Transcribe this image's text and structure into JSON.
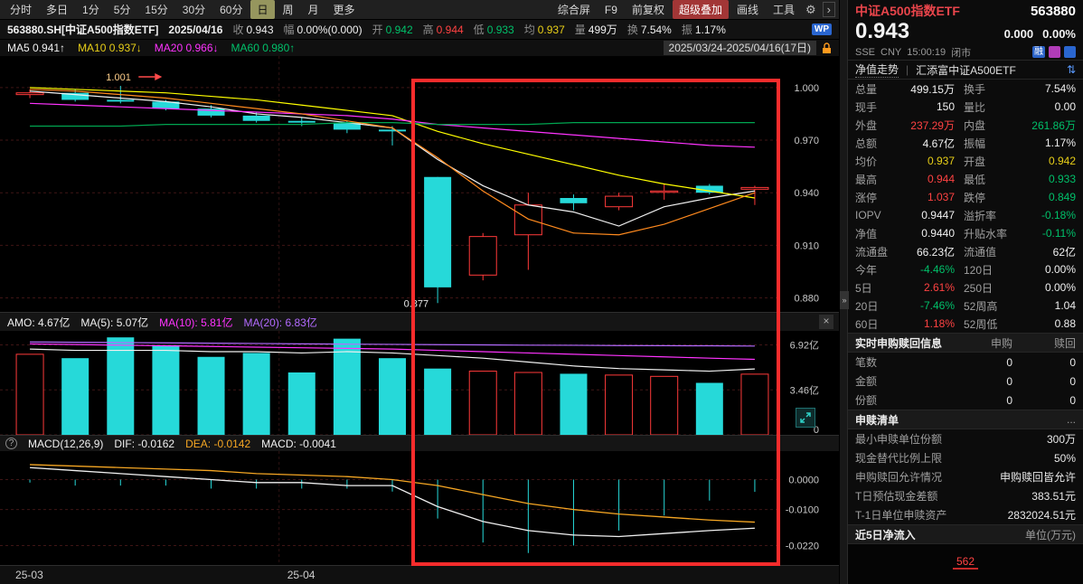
{
  "colors": {
    "white": "#f0f0f0",
    "gray": "#a0a0a0",
    "red": "#ff4242",
    "green": "#00c06a",
    "cyan": "#26d9d9",
    "yellow": "#e8cf18",
    "orange": "#f5a623",
    "magenta": "#ff33ff",
    "purple": "#b36bff",
    "blue": "#2a66d0",
    "k_up": "#ff3a3a",
    "k_down": "#26d9d9"
  },
  "icons": {
    "gear": "⚙",
    "chevron_right": "›",
    "close": "×",
    "help": "?",
    "collapse_right": "»",
    "swap_vertical": "⇅"
  },
  "topbar": {
    "tabs": [
      "分时",
      "多日",
      "1分",
      "5分",
      "15分",
      "30分",
      "60分",
      "日",
      "周",
      "月",
      "更多"
    ],
    "active_tab": "日",
    "right_buttons": [
      {
        "label": "综合屏"
      },
      {
        "label": "F9"
      },
      {
        "label": "前复权"
      },
      {
        "label": "超级叠加",
        "cls": "accent"
      },
      {
        "label": "画线"
      },
      {
        "label": "工具"
      }
    ]
  },
  "infobar": {
    "symbol": "563880.SH[中证A500指数ETF]",
    "date": "2025/04/16",
    "fields": [
      {
        "label": "收",
        "value": "0.943",
        "color": "white"
      },
      {
        "label": "幅",
        "value": "0.00%(0.000)",
        "color": "white"
      },
      {
        "label": "开",
        "value": "0.942",
        "color": "green"
      },
      {
        "label": "高",
        "value": "0.944",
        "color": "red"
      },
      {
        "label": "低",
        "value": "0.933",
        "color": "green"
      },
      {
        "label": "均",
        "value": "0.937",
        "color": "yellow"
      },
      {
        "label": "量",
        "value": "499万",
        "color": "white"
      },
      {
        "label": "换",
        "value": "7.54%",
        "color": "white"
      },
      {
        "label": "振",
        "value": "1.17%",
        "color": "white"
      }
    ],
    "wp_badge": "WP"
  },
  "ma_bar": {
    "items": [
      {
        "label": "MA5",
        "value": "0.941↑",
        "color": "white"
      },
      {
        "label": "MA10",
        "value": "0.937↓",
        "color": "yellow"
      },
      {
        "label": "MA20",
        "value": "0.966↓",
        "color": "magenta"
      },
      {
        "label": "MA60",
        "value": "0.980↑",
        "color": "green"
      }
    ],
    "date_range": "2025/03/24-2025/04/16(17日)"
  },
  "vol_header": {
    "fields": [
      {
        "label": "AMO:",
        "value": "4.67亿",
        "color": "white"
      },
      {
        "label": "MA(5):",
        "value": "5.07亿",
        "color": "white"
      },
      {
        "label": "MA(10):",
        "value": "5.81亿",
        "color": "magenta"
      },
      {
        "label": "MA(20):",
        "value": "6.83亿",
        "color": "purple"
      }
    ]
  },
  "macd_header": {
    "fields": [
      {
        "label": "MACD(12,26,9)",
        "value": "",
        "color": "white"
      },
      {
        "label": "DIF:",
        "value": "-0.0162",
        "color": "white"
      },
      {
        "label": "DEA:",
        "value": "-0.0142",
        "color": "orange"
      },
      {
        "label": "MACD:",
        "value": "-0.0041",
        "color": "white"
      }
    ]
  },
  "sidebar": {
    "name": "中证A500指数ETF",
    "code": "563880",
    "price": "0.943",
    "change": "0.000",
    "change_pct": "0.00%",
    "exchange": "SSE",
    "currency": "CNY",
    "time": "15:00:19",
    "market_status": "闭市",
    "badge_rong": "融",
    "nav_link": "净值走势",
    "related_fund": "汇添富中证A500ETF",
    "quote_rows": [
      {
        "l1": "总量",
        "v1": "499.15万",
        "c1": "white",
        "l2": "换手",
        "v2": "7.54%",
        "c2": "white"
      },
      {
        "l1": "现手",
        "v1": "150",
        "c1": "white",
        "l2": "量比",
        "v2": "0.00",
        "c2": "white"
      },
      {
        "l1": "外盘",
        "v1": "237.29万",
        "c1": "red",
        "l2": "内盘",
        "v2": "261.86万",
        "c2": "green"
      },
      {
        "l1": "总额",
        "v1": "4.67亿",
        "c1": "white",
        "l2": "振幅",
        "v2": "1.17%",
        "c2": "white"
      },
      {
        "l1": "均价",
        "v1": "0.937",
        "c1": "yellow",
        "l2": "开盘",
        "v2": "0.942",
        "c2": "yellow"
      },
      {
        "l1": "最高",
        "v1": "0.944",
        "c1": "red",
        "l2": "最低",
        "v2": "0.933",
        "c2": "green"
      },
      {
        "l1": "涨停",
        "v1": "1.037",
        "c1": "red",
        "l2": "跌停",
        "v2": "0.849",
        "c2": "green"
      },
      {
        "l1": "IOPV",
        "v1": "0.9447",
        "c1": "white",
        "l2": "溢折率",
        "v2": "-0.18%",
        "c2": "green"
      },
      {
        "l1": "净值",
        "v1": "0.9440",
        "c1": "white",
        "l2": "升贴水率",
        "v2": "-0.11%",
        "c2": "green"
      },
      {
        "l1": "流通盘",
        "v1": "66.23亿",
        "c1": "white",
        "l2": "流通值",
        "v2": "62亿",
        "c2": "white"
      },
      {
        "l1": "今年",
        "v1": "-4.46%",
        "c1": "green",
        "l2": "120日",
        "v2": "0.00%",
        "c2": "white"
      },
      {
        "l1": "5日",
        "v1": "2.61%",
        "c1": "red",
        "l2": "250日",
        "v2": "0.00%",
        "c2": "white"
      },
      {
        "l1": "20日",
        "v1": "-7.46%",
        "c1": "green",
        "l2": "52周高",
        "v2": "1.04",
        "c2": "white"
      },
      {
        "l1": "60日",
        "v1": "1.18%",
        "c1": "red",
        "l2": "52周低",
        "v2": "0.88",
        "c2": "white"
      }
    ],
    "subscription": {
      "title": "实时申购赎回信息",
      "col1": "申购",
      "col2": "赎回",
      "rows": [
        {
          "label": "笔数",
          "buy": "0",
          "sell": "0"
        },
        {
          "label": "金额",
          "buy": "0",
          "sell": "0"
        },
        {
          "label": "份额",
          "buy": "0",
          "sell": "0"
        }
      ]
    },
    "redemption": {
      "title": "申赎清单",
      "more": "...",
      "rows": [
        {
          "label": "最小申赎单位份额",
          "value": "300万"
        },
        {
          "label": "现金替代比例上限",
          "value": "50%"
        },
        {
          "label": "申购赎回允许情况",
          "value": "申购赎回皆允许"
        },
        {
          "label": "T日预估现金差额",
          "value": "383.51元"
        },
        {
          "label": "T-1日单位申赎资产",
          "value": "2832024.51元"
        }
      ]
    },
    "net_inflow": {
      "title": "近5日净流入",
      "unit": "单位(万元)",
      "value": "562"
    }
  },
  "chart_data": {
    "type": "candlestick",
    "title": "563880.SH 中证A500指数ETF 日K 2025/03/24-2025/04/16(17日)",
    "dates": [
      "03/24",
      "03/25",
      "03/26",
      "03/27",
      "03/28",
      "03/31",
      "04/01",
      "04/02",
      "04/03",
      "04/07",
      "04/08",
      "04/09",
      "04/10",
      "04/11",
      "04/14",
      "04/15",
      "04/16"
    ],
    "candles": [
      [
        0.996,
        0.999,
        0.994,
        0.997
      ],
      [
        0.997,
        0.999,
        0.992,
        0.993
      ],
      [
        0.993,
        1.001,
        0.991,
        0.992
      ],
      [
        0.992,
        0.993,
        0.987,
        0.988
      ],
      [
        0.988,
        0.99,
        0.983,
        0.984
      ],
      [
        0.984,
        0.986,
        0.98,
        0.981
      ],
      [
        0.981,
        0.983,
        0.978,
        0.98
      ],
      [
        0.98,
        0.981,
        0.974,
        0.976
      ],
      [
        0.976,
        0.978,
        0.967,
        0.975
      ],
      [
        0.949,
        0.949,
        0.877,
        0.886
      ],
      [
        0.893,
        0.917,
        0.89,
        0.915
      ],
      [
        0.916,
        0.94,
        0.896,
        0.933
      ],
      [
        0.937,
        0.939,
        0.93,
        0.934
      ],
      [
        0.932,
        0.94,
        0.93,
        0.938
      ],
      [
        0.941,
        0.945,
        0.936,
        0.941
      ],
      [
        0.944,
        0.945,
        0.939,
        0.94
      ],
      [
        0.942,
        0.944,
        0.933,
        0.943
      ]
    ],
    "ylim": [
      0.872,
      1.018
    ],
    "y_ticks": [
      {
        "v": 1.0,
        "label": "1.000"
      },
      {
        "v": 0.97,
        "label": "0.970"
      },
      {
        "v": 0.94,
        "label": "0.940"
      },
      {
        "v": 0.91,
        "label": "0.910"
      },
      {
        "v": 0.88,
        "label": "0.880"
      }
    ],
    "ma_series": [
      {
        "name": "MA5",
        "color": "#f0f0f0",
        "values": [
          0.998,
          0.996,
          0.994,
          0.992,
          0.989,
          0.985,
          0.983,
          0.98,
          0.977,
          0.959,
          0.944,
          0.933,
          0.929,
          0.921,
          0.932,
          0.937,
          0.941
        ]
      },
      {
        "name": "MA10",
        "color": "#ffff00",
        "values": [
          1.0,
          0.999,
          0.998,
          0.997,
          0.995,
          0.993,
          0.99,
          0.987,
          0.984,
          0.975,
          0.968,
          0.962,
          0.956,
          0.95,
          0.945,
          0.941,
          0.937
        ]
      },
      {
        "name": "MA20",
        "color": "#ff33ff",
        "values": [
          0.991,
          0.99,
          0.989,
          0.988,
          0.987,
          0.986,
          0.985,
          0.984,
          0.982,
          0.979,
          0.977,
          0.975,
          0.973,
          0.971,
          0.969,
          0.967,
          0.966
        ]
      },
      {
        "name": "MA60",
        "color": "#00a550",
        "values": [
          0.978,
          0.978,
          0.978,
          0.979,
          0.979,
          0.979,
          0.979,
          0.98,
          0.98,
          0.979,
          0.979,
          0.979,
          0.98,
          0.98,
          0.98,
          0.98,
          0.98
        ]
      },
      {
        "name": "MA-orange",
        "color": "#ff8a1e",
        "values": [
          0.999,
          0.998,
          0.996,
          0.994,
          0.991,
          0.988,
          0.985,
          0.981,
          0.977,
          0.96,
          0.941,
          0.925,
          0.917,
          0.916,
          0.922,
          0.931,
          0.94
        ]
      }
    ],
    "annotations": [
      {
        "text": "1.001",
        "index": 2,
        "price": 1.001,
        "placement": "above",
        "color": "#ffce8a",
        "arrow": true
      },
      {
        "text": "0.877",
        "index": 9,
        "price": 0.877,
        "placement": "left",
        "color": "#e8e8e8",
        "arrow": false
      }
    ],
    "x_labels": [
      {
        "index": 0,
        "text": "25-03"
      },
      {
        "index": 6,
        "text": "25-04"
      }
    ],
    "volume": {
      "unit": "亿",
      "values": [
        6.2,
        5.9,
        7.5,
        6.9,
        6.0,
        6.3,
        4.8,
        7.4,
        5.9,
        5.1,
        4.9,
        4.8,
        4.7,
        4.6,
        4.5,
        4.0,
        4.67
      ],
      "ylim": [
        0,
        8
      ],
      "y_ticks": [
        {
          "v": 6.92,
          "label": "6.92亿"
        },
        {
          "v": 3.46,
          "label": "3.46亿"
        },
        {
          "v": 0,
          "label": "0"
        }
      ],
      "ma_series": [
        {
          "name": "MA5",
          "color": "#f0f0f0",
          "values": [
            6.6,
            6.5,
            6.5,
            6.5,
            6.4,
            6.4,
            6.3,
            6.4,
            6.3,
            6.1,
            5.9,
            5.6,
            5.3,
            5.1,
            5.0,
            4.9,
            5.07
          ]
        },
        {
          "name": "MA10",
          "color": "#ff33ff",
          "values": [
            7.0,
            6.95,
            6.9,
            6.85,
            6.8,
            6.75,
            6.7,
            6.65,
            6.6,
            6.5,
            6.4,
            6.3,
            6.2,
            6.1,
            6.0,
            5.9,
            5.81
          ]
        },
        {
          "name": "MA20",
          "color": "#b36bff",
          "values": [
            7.15,
            7.12,
            7.1,
            7.08,
            7.05,
            7.03,
            7.0,
            6.98,
            6.96,
            6.94,
            6.92,
            6.9,
            6.89,
            6.87,
            6.86,
            6.85,
            6.83
          ]
        }
      ]
    },
    "macd": {
      "ylim": [
        -0.0285,
        0.0095
      ],
      "y_ticks": [
        {
          "v": 0,
          "label": "0.0000"
        },
        {
          "v": -0.01,
          "label": "-0.0100"
        },
        {
          "v": -0.022,
          "label": "-0.0220"
        }
      ],
      "dif": [
        0.004,
        0.003,
        0.002,
        0.001,
        0.0,
        -0.001,
        -0.001,
        -0.002,
        -0.002,
        -0.009,
        -0.014,
        -0.017,
        -0.0185,
        -0.019,
        -0.018,
        -0.017,
        -0.0162
      ],
      "dea": [
        0.005,
        0.0045,
        0.004,
        0.0035,
        0.003,
        0.002,
        0.0015,
        0.001,
        0.0,
        -0.002,
        -0.005,
        -0.008,
        -0.01,
        -0.0115,
        -0.0125,
        -0.0135,
        -0.0142
      ],
      "hist": [
        -0.001,
        -0.002,
        -0.002,
        -0.002,
        -0.003,
        -0.003,
        -0.003,
        -0.003,
        -0.004,
        -0.013,
        -0.021,
        -0.0245,
        -0.022,
        -0.017,
        -0.012,
        -0.007,
        -0.0041
      ],
      "dif_color": "#f0f0f0",
      "dea_color": "#f5a623"
    }
  }
}
